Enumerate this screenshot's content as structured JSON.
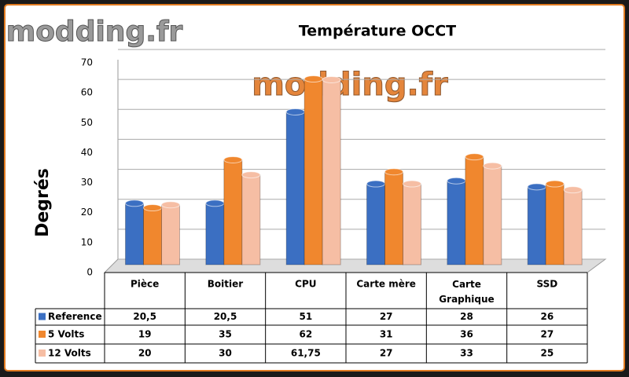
{
  "chart_data": {
    "type": "bar",
    "title": "Température OCCT",
    "watermark": "modding.fr",
    "y_label": "Degrés",
    "categories": [
      "Pièce",
      "Boitier",
      "CPU",
      "Carte mère",
      "Carte Graphique",
      "SSD"
    ],
    "series": [
      {
        "name": "Reference",
        "color": "#3b6fc2",
        "values": [
          20.5,
          20.5,
          51,
          27,
          28,
          26
        ],
        "value_labels": [
          "20,5",
          "20,5",
          "51",
          "27",
          "28",
          "26"
        ]
      },
      {
        "name": "5 Volts",
        "color": "#f0872e",
        "values": [
          19,
          35,
          62,
          31,
          36,
          27
        ]
      },
      {
        "name": "12 Volts",
        "color": "#f6bea4",
        "values": [
          20,
          30,
          61.75,
          27,
          33,
          25
        ],
        "value_labels": [
          "20",
          "30",
          "61,75",
          "27",
          "33",
          "25"
        ]
      }
    ],
    "ylim": [
      0,
      70
    ],
    "yticks": [
      0,
      10,
      20,
      30,
      40,
      50,
      60,
      70
    ],
    "grid": true
  }
}
